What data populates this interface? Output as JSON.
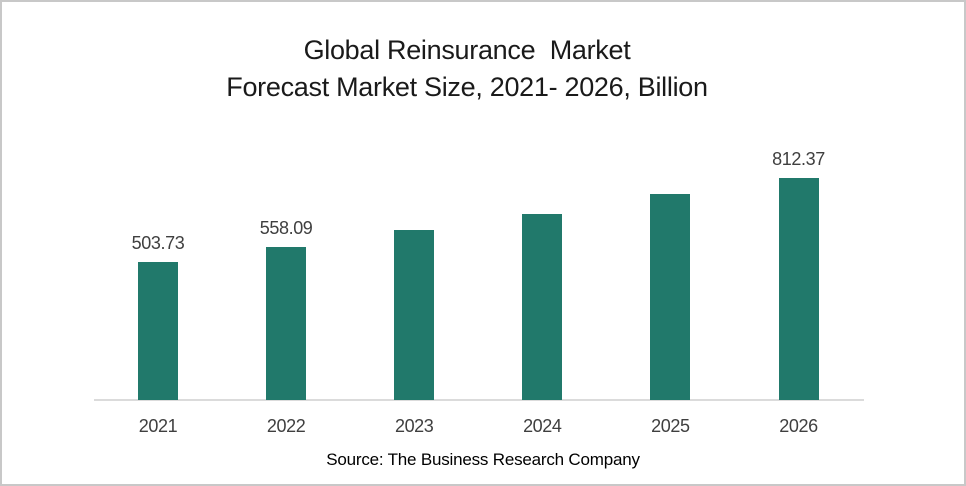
{
  "window": {
    "background": "#ffffff",
    "border_color": "#c8c8c8"
  },
  "title": {
    "line1": "Global Reinsurance  Market",
    "line2": "Forecast Market Size, 2021- 2026, Billion"
  },
  "source_caption": "Source: The Business Research Company",
  "chart_data": {
    "type": "bar",
    "title": "Global Reinsurance Market Forecast Market Size, 2021- 2026, Billion",
    "categories": [
      "2021",
      "2022",
      "2023",
      "2024",
      "2025",
      "2026"
    ],
    "values": [
      503.73,
      558.09,
      622,
      680,
      751,
      812.37
    ],
    "data_labels": [
      "503.73",
      "558.09",
      "",
      "",
      "",
      "812.37"
    ],
    "unlabeled_bars_estimated_from_pixels": [
      "2023",
      "2024",
      "2025"
    ],
    "xlabel": "",
    "ylabel": "",
    "ylim": [
      0,
      950
    ],
    "grid": false,
    "legend": false,
    "y_axis_shown": false,
    "bar_color": "#21796B",
    "axis_line_color": "#DBDBDB",
    "label_color": "#3F3F3F"
  }
}
